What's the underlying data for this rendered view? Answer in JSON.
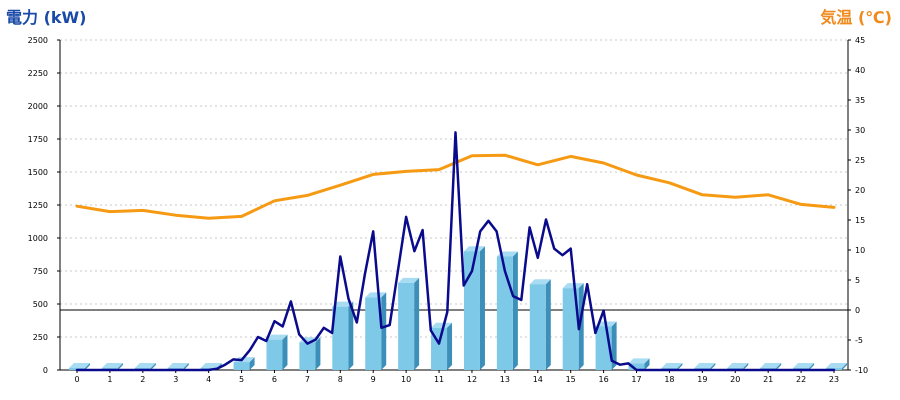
{
  "chart_data": {
    "type": "bar+line",
    "title_left": "電力 (kW)",
    "title_right": "気温 (℃)",
    "colors": {
      "title_left": "#1a4aa8",
      "title_right": "#f08a1c",
      "bar": "#7ec8e8",
      "bar_side": "#3b8fb8",
      "power_line": "#0a0a8c",
      "temp_line": "#f59a12"
    },
    "x_ticks": [
      "0",
      "1",
      "2",
      "3",
      "4",
      "5",
      "6",
      "7",
      "8",
      "9",
      "10",
      "11",
      "12",
      "13",
      "14",
      "15",
      "16",
      "17",
      "18",
      "19",
      "20",
      "21",
      "22",
      "23"
    ],
    "y_left": {
      "min": 0,
      "max": 2500,
      "ticks": [
        "0",
        "250",
        "500",
        "750",
        "1000",
        "1250",
        "1500",
        "1750",
        "2000",
        "2250",
        "2500"
      ]
    },
    "y_right": {
      "min": -10,
      "max": 45,
      "ticks": [
        "-10",
        "-5",
        "0",
        "5",
        "10",
        "15",
        "20",
        "25",
        "30",
        "35",
        "40",
        "45"
      ]
    },
    "reference_line_right": 0,
    "bars": {
      "name": "",
      "values": [
        15,
        15,
        15,
        15,
        15,
        60,
        230,
        210,
        480,
        550,
        660,
        320,
        900,
        860,
        650,
        620,
        330,
        50,
        15,
        15,
        15,
        15,
        15,
        15
      ]
    },
    "power_line": {
      "name": "",
      "x": [
        0,
        0.5,
        1,
        1.5,
        2,
        2.5,
        3,
        3.5,
        4,
        4.25,
        4.5,
        4.75,
        5,
        5.25,
        5.5,
        5.75,
        6,
        6.25,
        6.5,
        6.75,
        7,
        7.25,
        7.5,
        7.75,
        8,
        8.25,
        8.5,
        8.75,
        9,
        9.25,
        9.5,
        9.75,
        10,
        10.25,
        10.5,
        10.75,
        11,
        11.25,
        11.5,
        11.75,
        12,
        12.25,
        12.5,
        12.75,
        13,
        13.25,
        13.5,
        13.75,
        14,
        14.25,
        14.5,
        14.75,
        15,
        15.25,
        15.5,
        15.75,
        16,
        16.25,
        16.5,
        16.75,
        17,
        17.25,
        17.5,
        18,
        19,
        20,
        21,
        22,
        23
      ],
      "values": [
        0,
        0,
        0,
        0,
        0,
        0,
        0,
        0,
        0,
        10,
        40,
        80,
        75,
        150,
        250,
        220,
        370,
        330,
        520,
        270,
        200,
        230,
        320,
        280,
        860,
        540,
        360,
        730,
        1050,
        320,
        340,
        750,
        1160,
        900,
        1060,
        300,
        200,
        440,
        1800,
        640,
        750,
        1050,
        1130,
        1050,
        750,
        560,
        530,
        1080,
        850,
        1140,
        920,
        870,
        920,
        310,
        650,
        280,
        450,
        70,
        40,
        50,
        0,
        0,
        0,
        0,
        0,
        0,
        0,
        0,
        0
      ]
    },
    "temp_line": {
      "name": "",
      "x": [
        0,
        1,
        2,
        3,
        4,
        5,
        6,
        7,
        8,
        9,
        10,
        11,
        12,
        13,
        14,
        15,
        16,
        17,
        18,
        19,
        20,
        21,
        22,
        23
      ],
      "values": [
        17.3,
        16.4,
        16.6,
        15.8,
        15.3,
        15.6,
        18.2,
        19.1,
        20.8,
        22.6,
        23.1,
        23.4,
        25.7,
        25.8,
        24.2,
        25.6,
        24.5,
        22.5,
        21.2,
        19.2,
        18.8,
        19.2,
        17.6,
        17.1
      ]
    }
  }
}
